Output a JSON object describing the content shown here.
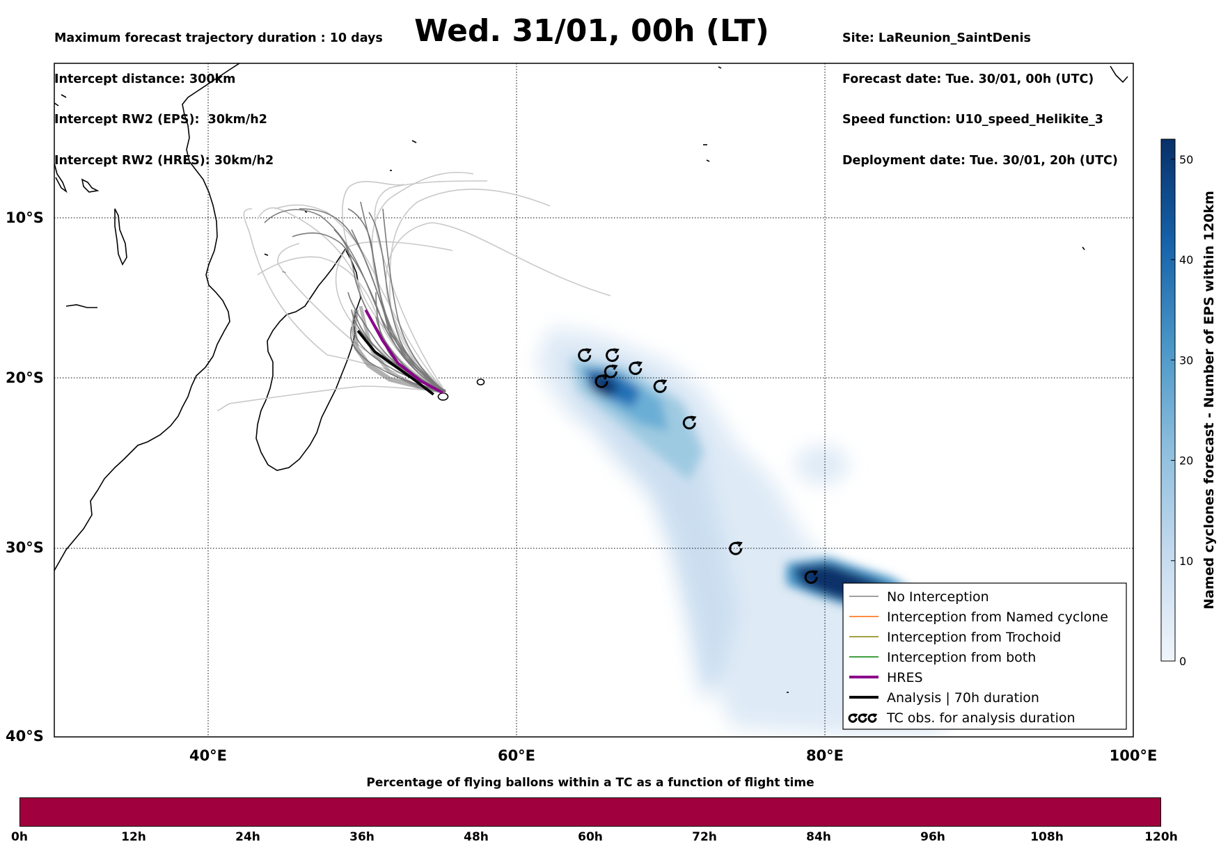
{
  "header": {
    "left": [
      "Maximum forecast trajectory duration : 10 days",
      "Intercept distance: 300km",
      "Intercept RW2 (EPS):  30km/h2",
      "Intercept RW2 (HRES): 30km/h2"
    ],
    "title": "Wed. 31/01, 00h (LT)",
    "right": [
      "Site: LaReunion_SaintDenis",
      "Forecast date: Tue. 30/01, 00h (UTC)",
      "Speed function: U10_speed_Helikite_3",
      "Deployment date: Tue. 30/01, 20h (UTC)"
    ]
  },
  "map": {
    "lon_range": [
      30,
      100
    ],
    "lat_range": [
      -40,
      0
    ],
    "lon_ticks": [
      "40°E",
      "60°E",
      "80°E",
      "100°E"
    ],
    "lat_ticks": [
      "10°S",
      "20°S",
      "30°S",
      "40°S"
    ],
    "gridlines": "dotted"
  },
  "chart_data": {
    "type": "scatter",
    "tc_observations": [
      {
        "lon": 64.4,
        "lat": -18.6
      },
      {
        "lon": 66.2,
        "lat": -18.6
      },
      {
        "lon": 66.1,
        "lat": -19.6
      },
      {
        "lon": 65.5,
        "lat": -20.2
      },
      {
        "lon": 67.7,
        "lat": -19.4
      },
      {
        "lon": 69.3,
        "lat": -20.5
      },
      {
        "lon": 71.2,
        "lat": -22.7
      },
      {
        "lon": 74.2,
        "lat": -30.0
      },
      {
        "lon": 79.1,
        "lat": -31.6
      }
    ],
    "analysis_track": [
      [
        54.6,
        -21.0
      ],
      [
        53.2,
        -20.0
      ],
      [
        50.8,
        -18.4
      ],
      [
        49.7,
        -17.1
      ]
    ],
    "hres_track": [
      [
        55.2,
        -20.9
      ],
      [
        53.8,
        -20.2
      ],
      [
        52.3,
        -19.1
      ],
      [
        51.3,
        -17.7
      ],
      [
        50.2,
        -15.8
      ]
    ],
    "colorbar": {
      "label": "Named cyclones forecast - Number of EPS within 120km",
      "ticks": [
        0,
        10,
        20,
        30,
        40,
        50
      ],
      "range": [
        0,
        52
      ]
    }
  },
  "legend": {
    "items": [
      {
        "label": "No Interception",
        "color": "#808080"
      },
      {
        "label": "Interception from Named cyclone",
        "color": "#ff6600"
      },
      {
        "label": "Interception from Trochoid",
        "color": "#808000"
      },
      {
        "label": "Interception from both",
        "color": "#008000"
      },
      {
        "label": "HRES",
        "color": "#8b008b"
      },
      {
        "label": "Analysis | 70h duration",
        "color": "#000000"
      },
      {
        "label": "TC obs. for analysis duration",
        "color": "#000000"
      }
    ]
  },
  "timebar": {
    "title": "Percentage of flying ballons within a TC as a function of flight time",
    "color": "#a0003d",
    "ticks": [
      "0h",
      "12h",
      "24h",
      "36h",
      "48h",
      "60h",
      "72h",
      "84h",
      "96h",
      "108h",
      "120h"
    ]
  }
}
